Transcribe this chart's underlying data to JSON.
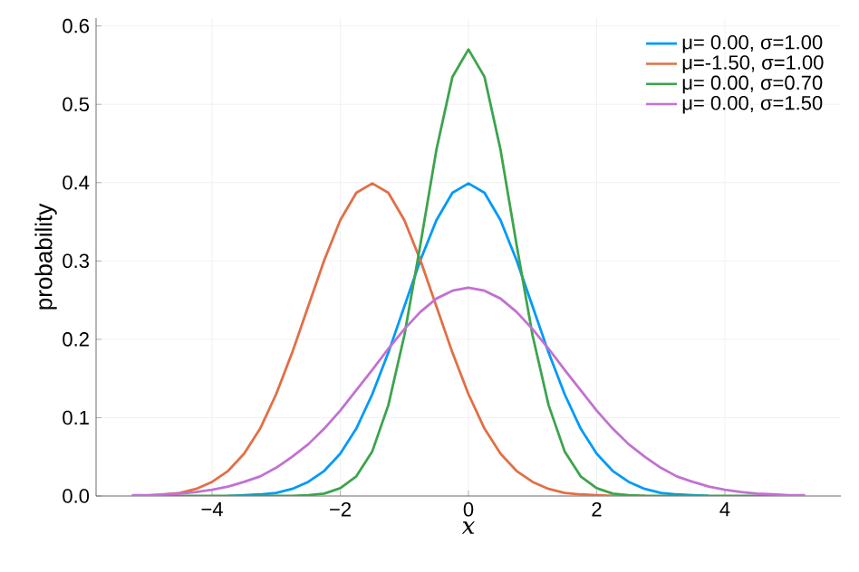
{
  "chart_data": {
    "type": "line",
    "xlabel": "x",
    "ylabel": "probability",
    "x": [
      -5.25,
      -5.0,
      -4.75,
      -4.5,
      -4.25,
      -4.0,
      -3.75,
      -3.5,
      -3.25,
      -3.0,
      -2.75,
      -2.5,
      -2.25,
      -2.0,
      -1.75,
      -1.5,
      -1.25,
      -1.0,
      -0.75,
      -0.5,
      -0.25,
      0,
      0.25,
      0.5,
      0.75,
      1.0,
      1.25,
      1.5,
      1.75,
      2.0,
      2.25,
      2.5,
      2.75,
      3.0,
      3.25,
      3.5,
      3.75,
      4.0,
      4.25,
      4.5,
      4.75,
      5.0,
      5.25
    ],
    "series": [
      {
        "name": "μ= 0.00, σ=1.00",
        "color": "#009af9",
        "values": [
          null,
          null,
          null,
          null,
          null,
          null,
          0,
          0.001,
          0.002,
          0.004,
          0.009,
          0.018,
          0.032,
          0.054,
          0.086,
          0.13,
          0.183,
          0.242,
          0.301,
          0.352,
          0.387,
          0.399,
          0.387,
          0.352,
          0.301,
          0.242,
          0.183,
          0.13,
          0.086,
          0.054,
          0.032,
          0.018,
          0.009,
          0.004,
          0.002,
          0.001,
          0,
          null,
          null,
          null,
          null,
          null,
          null
        ]
      },
      {
        "name": "μ=-1.50, σ=1.00",
        "color": "#e26f46",
        "values": [
          null,
          null,
          0.002,
          0.004,
          0.009,
          0.018,
          0.032,
          0.054,
          0.086,
          0.13,
          0.183,
          0.242,
          0.301,
          0.352,
          0.387,
          0.399,
          0.387,
          0.352,
          0.301,
          0.242,
          0.183,
          0.13,
          0.086,
          0.054,
          0.032,
          0.018,
          0.009,
          0.004,
          0.002,
          0.001,
          0,
          0,
          0,
          null,
          null,
          null,
          null,
          null,
          null,
          null,
          null,
          null,
          null
        ]
      },
      {
        "name": "μ= 0.00, σ=0.70",
        "color": "#3da44d",
        "values": [
          0,
          0,
          0,
          0,
          0,
          0,
          0,
          0,
          0,
          0,
          0,
          0.001,
          0.003,
          0.01,
          0.025,
          0.057,
          0.116,
          0.205,
          0.321,
          0.442,
          0.535,
          0.57,
          0.535,
          0.442,
          0.321,
          0.205,
          0.116,
          0.057,
          0.025,
          0.01,
          0.003,
          0.001,
          0,
          0,
          0,
          0,
          0,
          0,
          0,
          0,
          0,
          0,
          0
        ]
      },
      {
        "name": "μ= 0.00, σ=1.50",
        "color": "#c271d2",
        "values": [
          0.001,
          0.001,
          0.002,
          0.003,
          0.005,
          0.008,
          0.012,
          0.018,
          0.025,
          0.036,
          0.05,
          0.066,
          0.086,
          0.109,
          0.135,
          0.161,
          0.188,
          0.213,
          0.235,
          0.252,
          0.262,
          0.266,
          0.262,
          0.252,
          0.235,
          0.213,
          0.188,
          0.161,
          0.135,
          0.109,
          0.086,
          0.066,
          0.05,
          0.036,
          0.025,
          0.018,
          0.012,
          0.008,
          0.005,
          0.003,
          0.002,
          0.001,
          0.001
        ]
      }
    ],
    "xlim": [
      -5.81,
      5.81
    ],
    "ylim": [
      0,
      0.61
    ],
    "xticks": [
      {
        "value": -4,
        "label": "−4"
      },
      {
        "value": -2,
        "label": "−2"
      },
      {
        "value": 0,
        "label": "0"
      },
      {
        "value": 2,
        "label": "2"
      },
      {
        "value": 4,
        "label": "4"
      }
    ],
    "yticks": [
      {
        "value": 0,
        "label": "0.0"
      },
      {
        "value": 0.1,
        "label": "0.1"
      },
      {
        "value": 0.2,
        "label": "0.2"
      },
      {
        "value": 0.3,
        "label": "0.3"
      },
      {
        "value": 0.4,
        "label": "0.4"
      },
      {
        "value": 0.5,
        "label": "0.5"
      },
      {
        "value": 0.6,
        "label": "0.6"
      }
    ],
    "grid": true,
    "legend": "top right",
    "marker": "none",
    "line_style": "solid"
  }
}
